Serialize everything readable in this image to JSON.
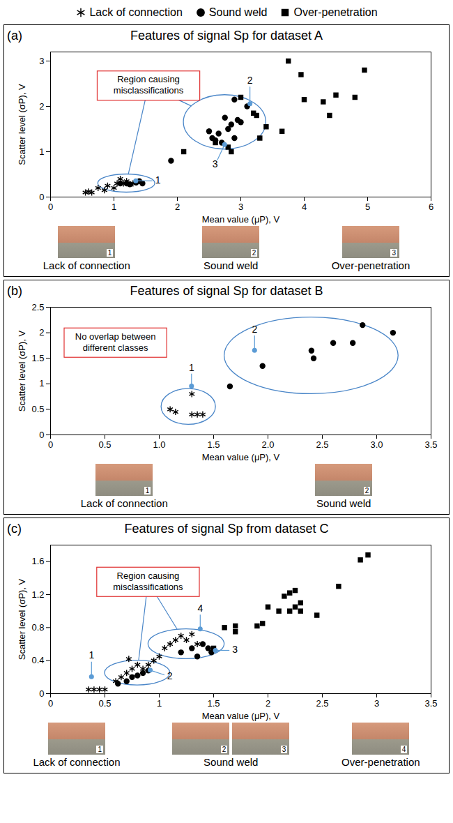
{
  "chart_data": [
    {
      "type": "scatter",
      "panel": "(a)",
      "title": "Features of signal Sp for dataset A",
      "x_label": "Mean value (μP), V",
      "y_label": "Scatter level (σP), V",
      "xlim": [
        0,
        6
      ],
      "xticks": [
        0,
        1,
        2,
        3,
        4,
        5,
        6
      ],
      "ylim": [
        0,
        3.2
      ],
      "yticks": [
        0,
        1,
        2,
        3
      ],
      "legend": "top",
      "series": [
        {
          "name": "Lack of connection",
          "marker": "asterisk",
          "color": "#000000",
          "x": [
            0.55,
            0.6,
            0.65,
            0.75,
            0.85,
            0.9,
            1.0,
            1.05,
            1.1,
            1.15,
            1.2,
            1.3
          ],
          "values": [
            0.1,
            0.12,
            0.1,
            0.2,
            0.15,
            0.25,
            0.2,
            0.3,
            0.4,
            0.3,
            0.35,
            0.3
          ]
        },
        {
          "name": "Sound weld",
          "marker": "circle",
          "color": "#000000",
          "x": [
            1.1,
            1.2,
            1.25,
            1.35,
            1.4,
            1.45,
            1.9,
            2.5,
            2.55,
            2.6,
            2.65,
            2.7,
            2.75,
            2.8,
            2.85,
            2.9,
            2.95,
            3.0,
            2.9,
            3.1
          ],
          "values": [
            0.3,
            0.3,
            0.28,
            0.32,
            0.35,
            0.3,
            0.8,
            1.45,
            1.3,
            1.25,
            1.4,
            1.2,
            1.75,
            1.5,
            1.6,
            2.15,
            1.7,
            1.65,
            1.3,
            2.0
          ]
        },
        {
          "name": "Over-penetration",
          "marker": "square",
          "color": "#000000",
          "x": [
            2.1,
            2.6,
            2.8,
            2.85,
            3.0,
            3.2,
            3.25,
            3.4,
            3.65,
            3.75,
            3.95,
            4.0,
            4.3,
            4.4,
            4.5,
            4.8,
            4.95,
            3.3
          ],
          "values": [
            1.0,
            1.2,
            1.1,
            1.0,
            2.2,
            1.85,
            1.8,
            1.55,
            1.45,
            3.0,
            2.7,
            2.15,
            2.1,
            1.8,
            2.25,
            2.2,
            2.8,
            1.3
          ]
        }
      ],
      "callout": {
        "text": "Region causing misclassifications",
        "x": 1.55,
        "y": 2.45,
        "regions": [
          {
            "cx": 1.2,
            "cy": 0.3,
            "rx": 0.45,
            "ry": 0.2
          },
          {
            "cx": 2.75,
            "cy": 1.65,
            "rx": 0.65,
            "ry": 0.6
          }
        ]
      },
      "annotations": [
        {
          "label": "1",
          "x": 1.35,
          "y": 0.35,
          "label_x": 1.7,
          "label_y": 0.35
        },
        {
          "label": "2",
          "x": 3.15,
          "y": 2.05,
          "label_x": 3.15,
          "label_y": 2.55
        },
        {
          "label": "3",
          "x": 2.75,
          "y": 1.15,
          "label_x": 2.6,
          "label_y": 0.7
        }
      ],
      "images": [
        {
          "numbers": [
            "1"
          ],
          "caption": "Lack of connection"
        },
        {
          "numbers": [
            "2"
          ],
          "caption": "Sound weld"
        },
        {
          "numbers": [
            "3"
          ],
          "caption": "Over-penetration"
        }
      ]
    },
    {
      "type": "scatter",
      "panel": "(b)",
      "title": "Features of signal Sp for dataset B",
      "x_label": "Mean value (μP), V",
      "y_label": "Scatter level (σP), V",
      "xlim": [
        0,
        3.5
      ],
      "xticks": [
        0,
        0.5,
        {
          "value": 1,
          "label": "1.0"
        },
        1.5,
        {
          "value": 2,
          "label": "2.0"
        },
        2.5,
        {
          "value": 3,
          "label": "3.0"
        },
        3.5
      ],
      "ylim": [
        0,
        2.5
      ],
      "yticks": [
        0,
        0.5,
        1,
        1.5,
        2,
        2.5
      ],
      "series": [
        {
          "name": "Lack of connection",
          "marker": "asterisk",
          "color": "#000000",
          "x": [
            1.1,
            1.15,
            1.3,
            1.3,
            1.35,
            1.4
          ],
          "values": [
            0.5,
            0.45,
            0.8,
            0.4,
            0.4,
            0.4
          ]
        },
        {
          "name": "Sound weld",
          "marker": "circle",
          "color": "#000000",
          "x": [
            1.65,
            1.95,
            2.4,
            2.42,
            2.6,
            2.78,
            2.87,
            3.15
          ],
          "values": [
            0.95,
            1.35,
            1.65,
            1.5,
            1.8,
            1.8,
            2.15,
            2.0
          ]
        }
      ],
      "callout": {
        "text": "No overlap between different classes",
        "x": 0.6,
        "y": 1.8
      },
      "regions": [
        {
          "cx": 1.27,
          "cy": 0.55,
          "rx": 0.25,
          "ry": 0.35
        },
        {
          "cx": 2.4,
          "cy": 1.55,
          "rx": 0.8,
          "ry": 0.75
        }
      ],
      "annotations": [
        {
          "label": "1",
          "x": 1.3,
          "y": 0.95,
          "label_x": 1.3,
          "label_y": 1.3
        },
        {
          "label": "2",
          "x": 1.88,
          "y": 1.65,
          "label_x": 1.88,
          "label_y": 2.05
        }
      ],
      "images": [
        {
          "numbers": [
            "1"
          ],
          "caption": "Lack of connection"
        },
        {
          "numbers": [
            "2"
          ],
          "caption": "Sound weld"
        }
      ]
    },
    {
      "type": "scatter",
      "panel": "(c)",
      "title": "Features of signal Sp from dataset C",
      "x_label": "Mean value (μP), V",
      "y_label": "Scatter level (σP), V",
      "xlim": [
        0,
        3.5
      ],
      "xticks": [
        0,
        0.5,
        1,
        1.5,
        2,
        2.5,
        3,
        3.5
      ],
      "ylim": [
        0,
        1.8
      ],
      "yticks": [
        0,
        0.4,
        0.8,
        1.2,
        1.6
      ],
      "series": [
        {
          "name": "Lack of connection",
          "marker": "asterisk",
          "color": "#000000",
          "x": [
            0.35,
            0.4,
            0.45,
            0.5,
            0.6,
            0.65,
            0.7,
            0.75,
            0.8,
            0.85,
            0.9,
            0.95,
            1.0,
            1.05,
            1.1,
            1.15,
            1.2,
            1.25,
            1.3,
            1.35,
            0.72
          ],
          "values": [
            0.05,
            0.05,
            0.05,
            0.05,
            0.15,
            0.2,
            0.25,
            0.3,
            0.35,
            0.3,
            0.35,
            0.4,
            0.45,
            0.55,
            0.6,
            0.65,
            0.7,
            0.65,
            0.72,
            0.6,
            0.42
          ]
        },
        {
          "name": "Sound weld",
          "marker": "circle",
          "color": "#000000",
          "x": [
            0.62,
            0.7,
            0.75,
            0.8,
            0.85,
            0.9,
            1.2,
            1.3,
            1.4,
            1.45,
            1.48,
            1.35
          ],
          "values": [
            0.12,
            0.15,
            0.2,
            0.22,
            0.25,
            0.28,
            0.5,
            0.55,
            0.6,
            0.55,
            0.5,
            0.45
          ]
        },
        {
          "name": "Over-penetration",
          "marker": "square",
          "color": "#000000",
          "x": [
            1.5,
            1.6,
            1.7,
            1.7,
            1.9,
            1.95,
            2.0,
            2.1,
            2.2,
            2.15,
            2.2,
            2.25,
            2.3,
            2.25,
            2.3,
            2.45,
            2.65,
            2.85,
            2.92
          ],
          "values": [
            0.55,
            0.8,
            0.75,
            0.82,
            0.82,
            0.85,
            1.05,
            1.0,
            1.0,
            1.18,
            1.22,
            1.25,
            1.1,
            1.05,
            1.0,
            0.95,
            1.3,
            1.62,
            1.68
          ]
        }
      ],
      "callout": {
        "text": "Region causing misclassifications",
        "x": 0.9,
        "y": 1.35,
        "regions": [
          {
            "cx": 0.8,
            "cy": 0.25,
            "rx": 0.3,
            "ry": 0.15
          },
          {
            "cx": 1.25,
            "cy": 0.6,
            "rx": 0.35,
            "ry": 0.18
          }
        ]
      },
      "annotations": [
        {
          "label": "1",
          "x": 0.38,
          "y": 0.2,
          "label_x": 0.38,
          "label_y": 0.45
        },
        {
          "label": "2",
          "x": 0.92,
          "y": 0.28,
          "label_x": 1.1,
          "label_y": 0.2
        },
        {
          "label": "3",
          "x": 1.52,
          "y": 0.52,
          "label_x": 1.7,
          "label_y": 0.52
        },
        {
          "label": "4",
          "x": 1.38,
          "y": 0.78,
          "label_x": 1.38,
          "label_y": 1.02
        }
      ],
      "images": [
        {
          "numbers": [
            "1"
          ],
          "caption": "Lack of connection"
        },
        {
          "numbers": [
            "2",
            "3"
          ],
          "caption": "Sound weld"
        },
        {
          "numbers": [
            "4"
          ],
          "caption": "Over-penetration"
        }
      ]
    }
  ]
}
